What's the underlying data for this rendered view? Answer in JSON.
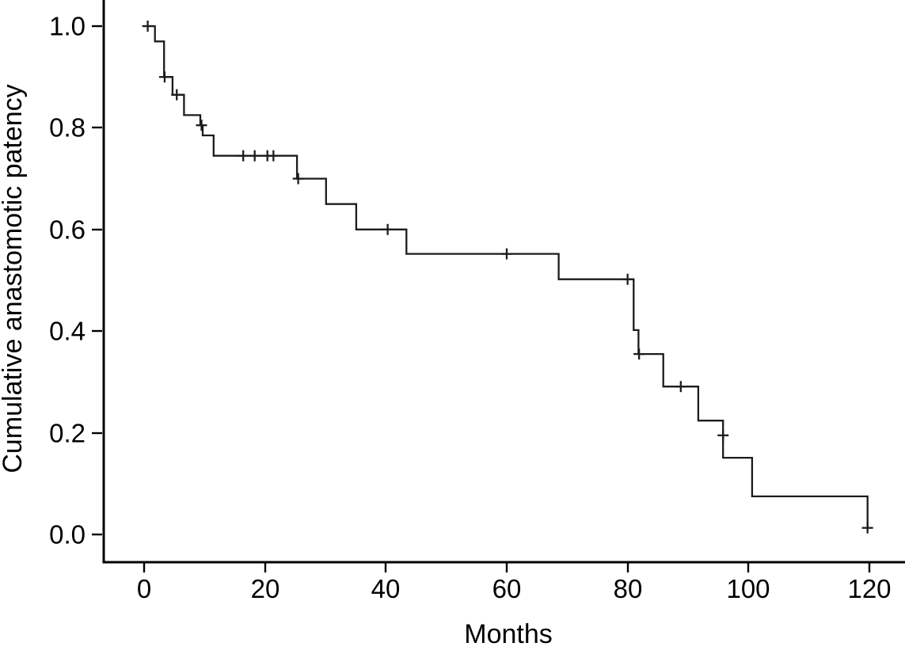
{
  "chart_data": {
    "type": "line",
    "subtype": "kaplan-meier-step-function",
    "title": "",
    "xlabel": "Months",
    "ylabel": "Cumulative anastomotic patency",
    "x_tick_labels": [
      "0",
      "20",
      "40",
      "60",
      "80",
      "100",
      "120"
    ],
    "y_tick_labels": [
      "1.0",
      "0.8",
      "0.6",
      "0.4",
      "0.2",
      "0.0"
    ],
    "xlim": [
      0,
      120
    ],
    "ylim": [
      0.0,
      1.0
    ],
    "grid": false,
    "legend": "none",
    "line_color": "#1c1c1c",
    "background_color": "#ffffff",
    "series": [
      {
        "name": "Cumulative anastomotic patency",
        "steps": [
          [
            0,
            1.0
          ],
          [
            1.8,
            0.97
          ],
          [
            3.3,
            0.9
          ],
          [
            4.7,
            0.865
          ],
          [
            6.6,
            0.825
          ],
          [
            9.3,
            0.805
          ],
          [
            9.7,
            0.785
          ],
          [
            11.5,
            0.745
          ],
          [
            25.3,
            0.7
          ],
          [
            30.1,
            0.65
          ],
          [
            35.1,
            0.6
          ],
          [
            43.4,
            0.552
          ],
          [
            68.6,
            0.502
          ],
          [
            81.0,
            0.402
          ],
          [
            81.8,
            0.355
          ],
          [
            85.9,
            0.291
          ],
          [
            91.7,
            0.224
          ],
          [
            95.8,
            0.151
          ],
          [
            100.6,
            0.075
          ],
          [
            119.7,
            0.013
          ]
        ],
        "censor_marks": [
          [
            0.6,
            1.0
          ],
          [
            3.4,
            0.9
          ],
          [
            5.4,
            0.865
          ],
          [
            9.5,
            0.805
          ],
          [
            16.4,
            0.745
          ],
          [
            18.3,
            0.745
          ],
          [
            20.4,
            0.745
          ],
          [
            21.4,
            0.745
          ],
          [
            25.5,
            0.7
          ],
          [
            40.3,
            0.6
          ],
          [
            60.0,
            0.552
          ],
          [
            80.0,
            0.502
          ],
          [
            81.9,
            0.355
          ],
          [
            88.8,
            0.291
          ],
          [
            95.8,
            0.195
          ],
          [
            119.7,
            0.013
          ]
        ]
      }
    ]
  }
}
